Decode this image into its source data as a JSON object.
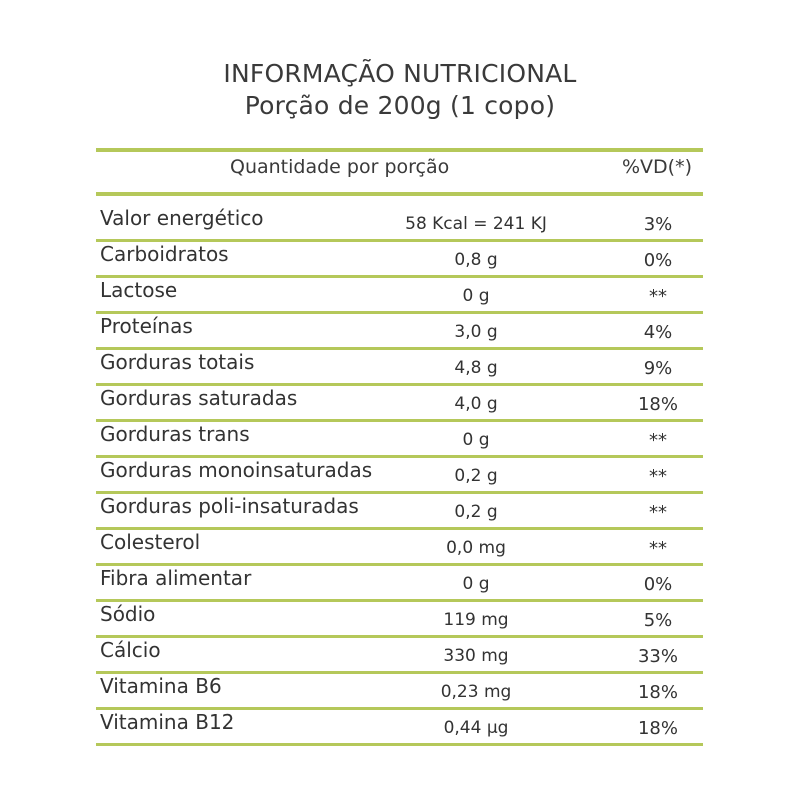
{
  "header": {
    "title": "INFORMAÇÃO NUTRICIONAL",
    "subtitle": "Porção de 200g (1 copo)"
  },
  "table": {
    "col_quantity": "Quantidade por porção",
    "col_dv": "%VD(*)",
    "rows": [
      {
        "name": "Valor energético",
        "amount": "58 Kcal = 241 KJ",
        "dv": "3%"
      },
      {
        "name": "Carboidratos",
        "amount": "0,8 g",
        "dv": "0%"
      },
      {
        "name": "Lactose",
        "amount": "0 g",
        "dv": "**"
      },
      {
        "name": "Proteínas",
        "amount": "3,0 g",
        "dv": "4%"
      },
      {
        "name": "Gorduras totais",
        "amount": "4,8 g",
        "dv": "9%"
      },
      {
        "name": "Gorduras saturadas",
        "amount": "4,0 g",
        "dv": "18%"
      },
      {
        "name": "Gorduras trans",
        "amount": "0 g",
        "dv": "**"
      },
      {
        "name": "Gorduras monoinsaturadas",
        "amount": "0,2 g",
        "dv": "**"
      },
      {
        "name": "Gorduras poli-insaturadas",
        "amount": "0,2 g",
        "dv": "**"
      },
      {
        "name": "Colesterol",
        "amount": "0,0 mg",
        "dv": "**"
      },
      {
        "name": "Fibra alimentar",
        "amount": "0 g",
        "dv": "0%"
      },
      {
        "name": "Sódio",
        "amount": "119 mg",
        "dv": "5%"
      },
      {
        "name": "Cálcio",
        "amount": "330 mg",
        "dv": "33%"
      },
      {
        "name": "Vitamina B6",
        "amount": "0,23 mg",
        "dv": "18%"
      },
      {
        "name": "Vitamina B12",
        "amount": "0,44 µg",
        "dv": "18%"
      }
    ]
  },
  "colors": {
    "rule": "#b5c85a",
    "text": "#333333"
  }
}
